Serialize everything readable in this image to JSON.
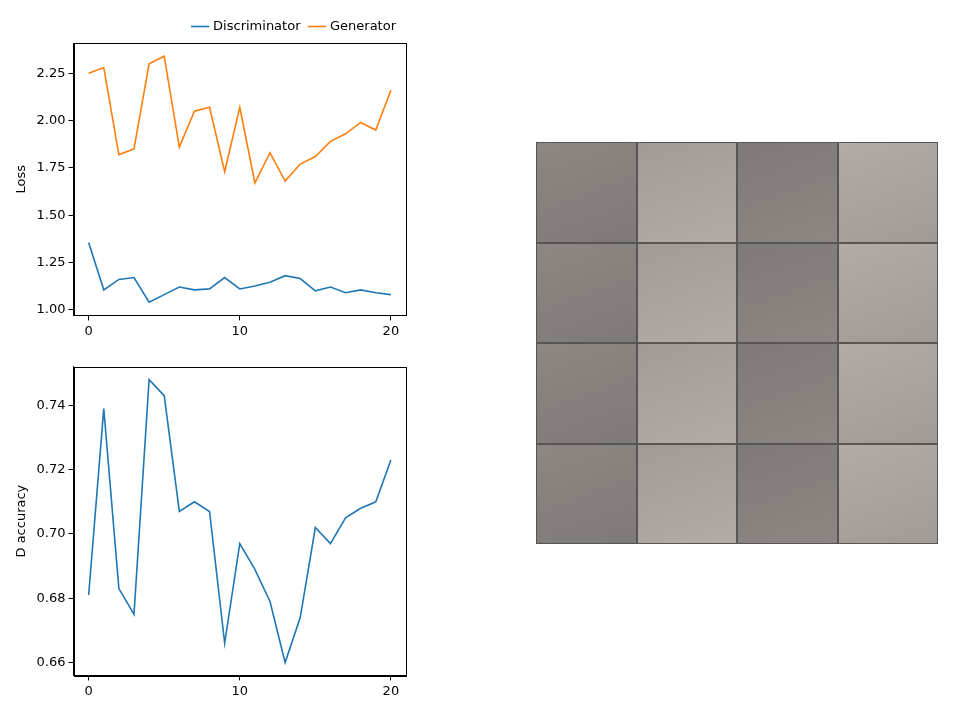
{
  "chart_data": [
    {
      "type": "line",
      "ylabel": "Loss",
      "legend": "top right",
      "x": [
        0,
        1,
        2,
        3,
        4,
        5,
        6,
        7,
        8,
        9,
        10,
        11,
        12,
        13,
        14,
        15,
        16,
        17,
        18,
        19,
        20
      ],
      "series": [
        {
          "name": "Discriminator",
          "color": "#1f77b4",
          "values": [
            1.355,
            1.105,
            1.16,
            1.17,
            1.04,
            1.08,
            1.12,
            1.105,
            1.11,
            1.17,
            1.11,
            1.125,
            1.145,
            1.18,
            1.165,
            1.1,
            1.12,
            1.09,
            1.105,
            1.09,
            1.08
          ]
        },
        {
          "name": "Generator",
          "color": "#ff7f0e",
          "values": [
            2.25,
            2.28,
            1.82,
            1.85,
            2.3,
            2.34,
            1.86,
            2.05,
            2.07,
            1.73,
            2.07,
            1.67,
            1.83,
            1.68,
            1.77,
            1.81,
            1.89,
            1.93,
            1.99,
            1.95,
            2.16
          ]
        }
      ],
      "xlim": [
        -1,
        21
      ],
      "xticks": [
        0,
        10,
        20
      ],
      "ylim": [
        0.97,
        2.41
      ],
      "yticks": [
        {
          "value": 1,
          "label": "1.00"
        },
        {
          "value": 1.25,
          "label": "1.25"
        },
        {
          "value": 1.5,
          "label": "1.50"
        },
        {
          "value": 1.75,
          "label": "1.75"
        },
        {
          "value": 2,
          "label": "2.00"
        },
        {
          "value": 2.25,
          "label": "2.25"
        }
      ]
    },
    {
      "type": "line",
      "ylabel": "D accuracy",
      "x": [
        0,
        1,
        2,
        3,
        4,
        5,
        6,
        7,
        8,
        9,
        10,
        11,
        12,
        13,
        14,
        15,
        16,
        17,
        18,
        19,
        20
      ],
      "values": [
        0.681,
        0.739,
        0.683,
        0.675,
        0.748,
        0.743,
        0.707,
        0.71,
        0.707,
        0.666,
        0.697,
        0.689,
        0.679,
        0.66,
        0.674,
        0.702,
        0.697,
        0.705,
        0.708,
        0.71,
        0.723
      ],
      "color": "#1f77b4",
      "xlim": [
        -1,
        21
      ],
      "xticks": [
        0,
        10,
        20
      ],
      "ylim": [
        0.656,
        0.752
      ],
      "yticks": [
        0.66,
        0.68,
        {
          "value": 0.7,
          "label": "0.70"
        },
        0.72,
        0.74
      ]
    }
  ]
}
